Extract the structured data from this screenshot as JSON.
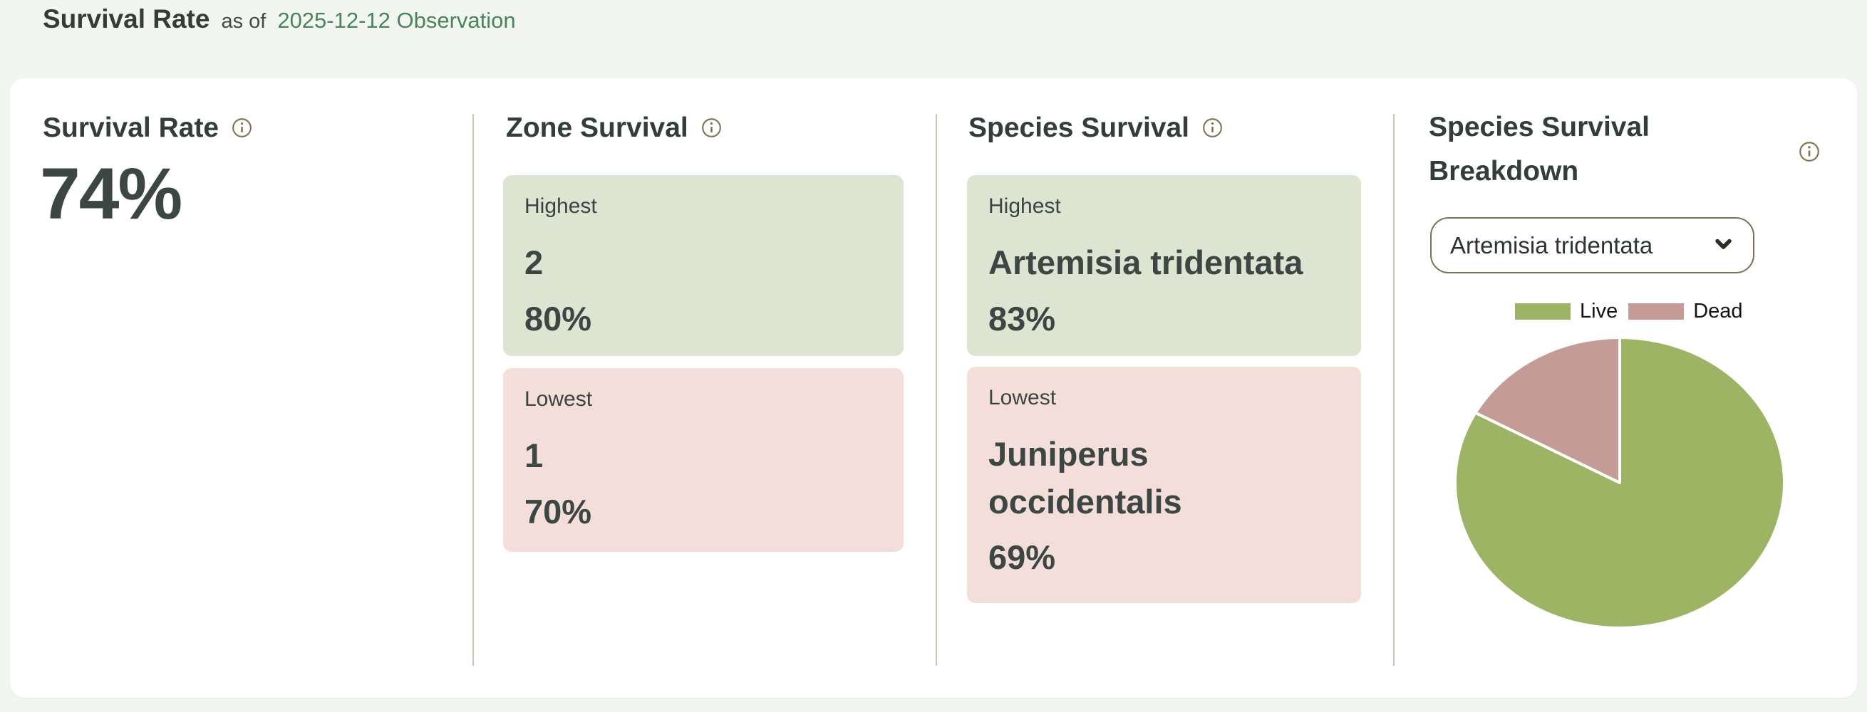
{
  "header": {
    "title": "Survival Rate",
    "as_of": "as of",
    "observation_link": "2025-12-12 Observation"
  },
  "panels": {
    "survival_rate": {
      "title": "Survival Rate",
      "value": "74%"
    },
    "zone_survival": {
      "title": "Zone Survival",
      "highest": {
        "label": "Highest",
        "name": "2",
        "value": "80%"
      },
      "lowest": {
        "label": "Lowest",
        "name": "1",
        "value": "70%"
      }
    },
    "species_survival": {
      "title": "Species Survival",
      "highest": {
        "label": "Highest",
        "name": "Artemisia tridentata",
        "value": "83%"
      },
      "lowest": {
        "label": "Lowest",
        "name": "Juniperus occidentalis",
        "value": "69%"
      }
    },
    "breakdown": {
      "title": "Species Survival Breakdown",
      "species_selector_value": "Artemisia tridentata",
      "legend": {
        "live": "Live",
        "dead": "Dead"
      }
    }
  },
  "colors": {
    "page_background": "#f3f6f0",
    "card_background": "#ffffff",
    "highest_box": "#dde4d1",
    "lowest_box": "#f3ded9",
    "live": "#9cb464",
    "dead": "#c59b95",
    "link_green": "#47855c",
    "icon_olive": "#7c744f",
    "divider": "#ccc5b2",
    "text_dark": "#3c4643"
  },
  "chart_data": {
    "type": "pie",
    "title": "Species Survival Breakdown",
    "selected_species": "Artemisia tridentata",
    "labels": [
      "Live",
      "Dead"
    ],
    "values": [
      83,
      17
    ],
    "colors": [
      "#9cb464",
      "#c59b95"
    ],
    "start_angle_deg": -90,
    "direction": "clockwise",
    "legend_position": "top"
  }
}
